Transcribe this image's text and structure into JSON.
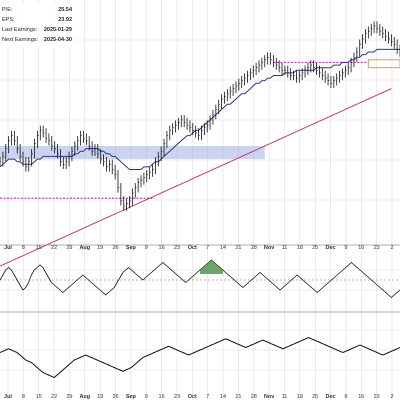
{
  "info": [
    {
      "label": "P/E:",
      "value": "25.54"
    },
    {
      "label": "EPS:",
      "value": "23.92"
    },
    {
      "label": "Last Earnings:",
      "value": "2025-01-29"
    },
    {
      "label": "Next Earnings:",
      "value": "2025-04-30"
    }
  ],
  "colors": {
    "price": "#111111",
    "ma_short": "#33338a",
    "ma_long": "#c04060",
    "support_line": "#cc33cc",
    "shade": "#a9b5e6",
    "box": "#e09a55",
    "macd_fill": "#3a8a3a",
    "grid": "#dddddd"
  },
  "chart_data": {
    "type": "line",
    "x_ticks": [
      {
        "label": "Jul",
        "month": true
      },
      {
        "label": "8"
      },
      {
        "label": "15"
      },
      {
        "label": "22"
      },
      {
        "label": "29"
      },
      {
        "label": "Aug",
        "month": true
      },
      {
        "label": "19"
      },
      {
        "label": "26"
      },
      {
        "label": "Sep",
        "month": true
      },
      {
        "label": "9"
      },
      {
        "label": "16"
      },
      {
        "label": "23"
      },
      {
        "label": "Oct",
        "month": true
      },
      {
        "label": "7"
      },
      {
        "label": "14"
      },
      {
        "label": "21"
      },
      {
        "label": "28"
      },
      {
        "label": "Nov",
        "month": true
      },
      {
        "label": "11"
      },
      {
        "label": "18"
      },
      {
        "label": "25"
      },
      {
        "label": "Dec",
        "month": true
      },
      {
        "label": "9"
      },
      {
        "label": "16"
      },
      {
        "label": "23"
      },
      {
        "label": "2"
      }
    ],
    "price_panel": {
      "price": [
        150,
        152,
        155,
        158,
        160,
        158,
        155,
        152,
        150,
        148,
        150,
        153,
        157,
        160,
        162,
        161,
        159,
        158,
        156,
        155,
        153,
        150,
        149,
        150,
        152,
        154,
        156,
        158,
        160,
        159,
        158,
        156,
        154,
        155,
        153,
        151,
        150,
        148,
        149,
        147,
        145,
        140,
        135,
        133,
        134,
        135,
        138,
        140,
        142,
        143,
        144,
        145,
        146,
        147,
        150,
        152,
        154,
        157,
        160,
        162,
        163,
        164,
        165,
        166,
        165,
        164,
        163,
        162,
        161,
        160,
        162,
        163,
        164,
        166,
        168,
        170,
        172,
        174,
        175,
        176,
        177,
        178,
        179,
        180,
        181,
        182,
        183,
        184,
        185,
        186,
        187,
        188,
        189,
        190,
        189,
        188,
        187,
        186,
        185,
        185,
        184,
        183,
        183,
        182,
        183,
        184,
        185,
        186,
        187,
        186,
        185,
        184,
        183,
        182,
        181,
        180,
        181,
        182,
        183,
        184,
        185,
        186,
        188,
        190,
        192,
        195,
        197,
        199,
        200,
        201,
        202,
        201,
        200,
        199,
        198,
        197,
        196,
        195,
        193,
        192
      ],
      "ma_short": [
        148,
        149,
        150,
        151,
        151,
        151,
        150,
        150,
        149,
        149,
        149,
        149,
        150,
        151,
        151,
        152,
        152,
        152,
        152,
        152,
        152,
        152,
        152,
        152,
        152,
        152,
        153,
        153,
        154,
        154,
        155,
        155,
        155,
        155,
        155,
        154,
        154,
        153,
        153,
        152,
        152,
        151,
        150,
        149,
        148,
        147,
        147,
        147,
        147,
        147,
        148,
        148,
        148,
        149,
        150,
        150,
        151,
        152,
        153,
        154,
        155,
        156,
        157,
        158,
        159,
        160,
        160,
        161,
        162,
        162,
        163,
        164,
        165,
        166,
        167,
        168,
        169,
        170,
        171,
        172,
        172,
        173,
        174,
        175,
        176,
        176,
        177,
        178,
        179,
        180,
        180,
        181,
        181,
        182,
        182,
        183,
        183,
        183,
        183,
        184,
        184,
        184,
        184,
        185,
        185,
        185,
        185,
        185,
        185,
        185,
        186,
        186,
        186,
        186,
        186,
        186,
        187,
        187,
        187,
        188,
        188,
        188,
        189,
        189,
        190,
        190,
        191,
        191,
        192,
        192,
        192,
        193,
        193,
        193,
        193,
        193,
        193,
        193,
        193,
        193
      ],
      "ma_long": [
        110,
        110.5,
        111,
        111.5,
        112,
        112.5,
        113,
        113.5,
        114,
        114.5,
        115,
        115.5,
        116,
        116.5,
        117,
        117.5,
        118,
        118.5,
        119,
        119.5,
        120,
        120.5,
        121,
        121.5,
        122,
        122.5,
        123,
        123.5,
        124,
        124.5,
        125,
        125.5,
        126,
        126.5,
        127,
        127.5,
        128,
        128.5,
        129,
        129.5,
        130,
        130.5,
        131,
        131.5,
        132,
        132.5,
        133,
        133.5,
        134,
        134.5,
        135,
        135.5,
        136,
        136.5,
        137,
        137.5,
        138,
        138.5,
        139,
        139.5,
        140,
        140.5,
        141,
        141.5,
        142,
        142.5,
        143,
        143.5,
        144,
        144.5,
        145,
        145.5,
        146,
        146.5,
        147,
        147.5,
        148,
        148.5,
        149,
        149.5,
        150,
        150.5,
        151,
        151.5,
        152,
        152.5,
        153,
        153.5,
        154,
        154.5,
        155,
        155.5,
        156,
        156.5,
        157,
        157.5,
        158,
        158.5,
        159,
        159.5,
        160,
        160.5,
        161,
        161.5,
        162,
        162.5,
        163,
        163.5,
        164,
        164.5,
        165,
        165.5,
        166,
        166.5,
        167,
        167.5,
        168,
        168.5,
        169,
        169.5,
        170,
        170.5,
        171,
        171.5,
        172,
        172.5,
        173,
        173.5,
        174,
        174.5,
        175,
        175.5,
        176,
        176.5,
        177,
        177.5,
        178
      ],
      "ylim": [
        120,
        210
      ],
      "support_lines": [
        {
          "y": 136,
          "x_start": 0,
          "x_end": 53
        },
        {
          "y": 188,
          "x_start": 95,
          "x_end": 128
        }
      ],
      "shade_zone": {
        "y_low": 151,
        "y_high": 156,
        "x_start": 0,
        "x_end": 92
      },
      "highlight_box": {
        "y_low": 186,
        "y_high": 189,
        "x_start": 128,
        "x_end": 139
      }
    },
    "momentum_panel": {
      "values": [
        0,
        2,
        4,
        5,
        4,
        2,
        0,
        -2,
        -4,
        -3,
        -1,
        2,
        4,
        5,
        6,
        5,
        3,
        1,
        -1,
        -2,
        -3,
        -4,
        -5,
        -4,
        -3,
        -2,
        -1,
        0,
        1,
        2,
        1,
        0,
        -1,
        -2,
        -3,
        -4,
        -5,
        -6,
        -5,
        -4,
        -3,
        -1,
        1,
        3,
        4,
        5,
        4,
        3,
        2,
        1,
        0,
        1,
        2,
        3,
        4,
        5,
        6,
        7,
        6,
        5,
        4,
        3,
        2,
        1,
        0,
        -1,
        0,
        1,
        2,
        3,
        4,
        5,
        6,
        7,
        8,
        7,
        6,
        5,
        4,
        3,
        2,
        1,
        0,
        -1,
        -2,
        -3,
        -2,
        -1,
        0,
        1,
        2,
        3,
        2,
        1,
        0,
        -1,
        -2,
        -3,
        -4,
        -3,
        -2,
        -1,
        0,
        1,
        2,
        1,
        0,
        -1,
        -2,
        -3,
        -4,
        -5,
        -4,
        -3,
        -2,
        -1,
        0,
        1,
        2,
        3,
        4,
        5,
        6,
        7,
        6,
        5,
        4,
        3,
        2,
        1,
        0,
        -1,
        -2,
        -3,
        -4,
        -5,
        -6,
        -7,
        -6,
        -5,
        -4
      ],
      "ylim": [
        -12,
        12
      ]
    },
    "relative_panel": {
      "values": [
        50,
        51,
        52,
        53,
        52,
        51,
        50,
        48,
        46,
        44,
        43,
        42,
        40,
        38,
        36,
        34,
        33,
        32,
        31,
        30,
        32,
        34,
        36,
        38,
        40,
        42,
        44,
        45,
        46,
        47,
        48,
        47,
        46,
        45,
        44,
        43,
        42,
        41,
        40,
        39,
        38,
        37,
        36,
        35,
        36,
        37,
        38,
        40,
        42,
        44,
        46,
        47,
        48,
        49,
        50,
        51,
        52,
        53,
        54,
        55,
        54,
        53,
        52,
        51,
        50,
        49,
        48,
        49,
        50,
        51,
        52,
        53,
        54,
        55,
        56,
        57,
        58,
        59,
        60,
        61,
        60,
        59,
        58,
        57,
        56,
        55,
        54,
        55,
        56,
        57,
        58,
        59,
        60,
        59,
        58,
        57,
        56,
        55,
        54,
        53,
        54,
        55,
        56,
        57,
        58,
        59,
        60,
        61,
        62,
        61,
        60,
        59,
        58,
        57,
        56,
        55,
        54,
        53,
        52,
        51,
        50,
        51,
        52,
        53,
        54,
        55,
        56,
        55,
        54,
        53,
        52,
        51,
        50,
        49,
        48,
        49,
        50,
        51,
        52,
        53,
        54
      ],
      "ylim": [
        20,
        80
      ]
    }
  }
}
